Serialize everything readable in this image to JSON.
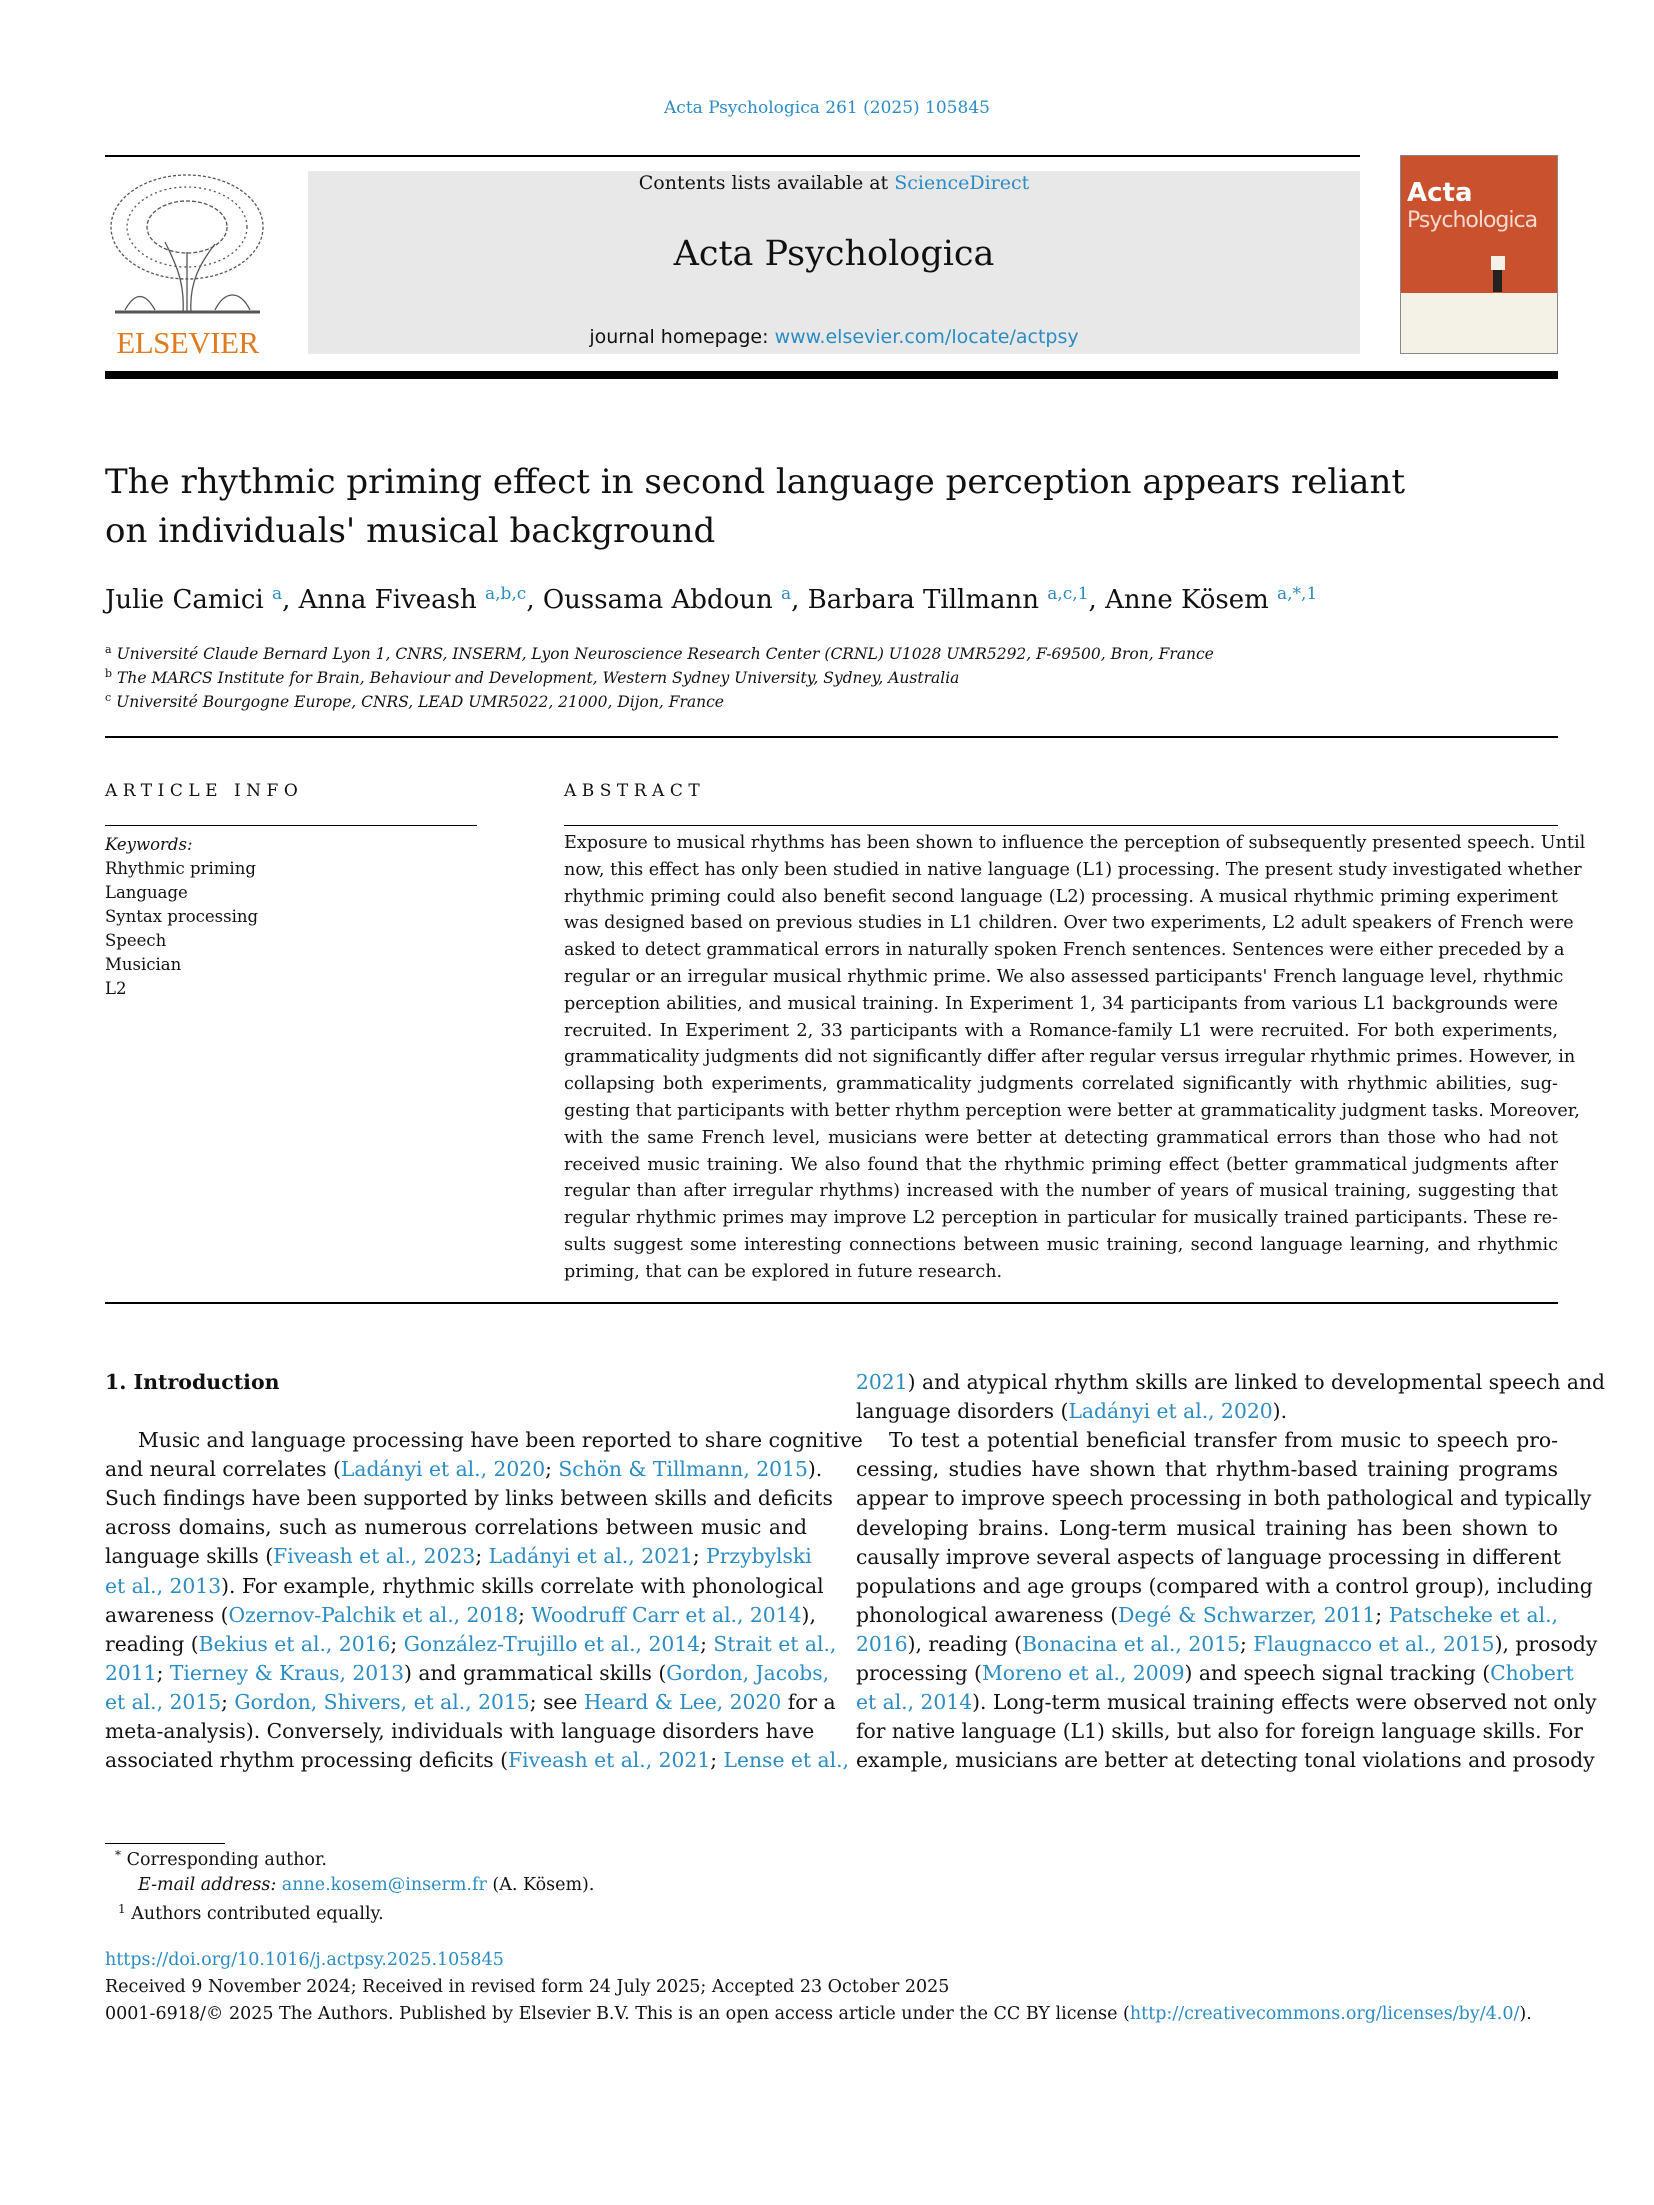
{
  "header": {
    "journal_ref": "Acta Psychologica 261 (2025) 105845",
    "contents_prefix": "Contents lists available at ",
    "contents_link": "ScienceDirect",
    "journal_title": "Acta Psychologica",
    "homepage_prefix": "journal homepage: ",
    "homepage_link": "www.elsevier.com/locate/actpsy",
    "publisher_logo": "ELSEVIER",
    "cover_title_1": "Acta",
    "cover_title_2": "Psychologica",
    "colors": {
      "link": "#2b8cc4",
      "elsevier_orange": "#e07b1f",
      "cover": "#c9512d",
      "header_box": "#e8e8e8"
    }
  },
  "article": {
    "title_line_1": "The rhythmic priming effect in second language perception appears reliant",
    "title_line_2": "on individuals' musical background",
    "authors": [
      {
        "name": "Julie Camici",
        "sup": "a",
        "sep": ", "
      },
      {
        "name": "Anna Fiveash",
        "sup": "a,b,c",
        "sep": ", "
      },
      {
        "name": "Oussama Abdoun",
        "sup": "a",
        "sep": ", "
      },
      {
        "name": "Barbara Tillmann",
        "sup": "a,c,1",
        "sep": ", "
      },
      {
        "name": "Anne Kösem",
        "sup": "a,*,1",
        "sep": ""
      }
    ],
    "affiliations": [
      {
        "mark": "a",
        "text": "Université Claude Bernard Lyon 1, CNRS, INSERM, Lyon Neuroscience Research Center (CRNL) U1028 UMR5292, F-69500, Bron, France"
      },
      {
        "mark": "b",
        "text": "The MARCS Institute for Brain, Behaviour and Development, Western Sydney University, Sydney, Australia"
      },
      {
        "mark": "c",
        "text": "Université Bourgogne Europe, CNRS, LEAD UMR5022, 21000, Dijon, France"
      }
    ]
  },
  "article_info": {
    "heading": "ARTICLE INFO",
    "keywords_label": "Keywords:",
    "keywords": [
      "Rhythmic priming",
      "Language",
      "Syntax processing",
      "Speech",
      "Musician",
      "L2"
    ]
  },
  "abstract": {
    "heading": "ABSTRACT",
    "lines": [
      "Exposure to musical rhythms has been shown to influence the perception of subsequently presented speech. Until",
      "now, this effect has only been studied in native language (L1) processing. The present study investigated whether",
      "rhythmic priming could also benefit second language (L2) processing. A musical rhythmic priming experiment",
      "was designed based on previous studies in L1 children. Over two experiments, L2 adult speakers of French were",
      "asked to detect grammatical errors in naturally spoken French sentences. Sentences were either preceded by a",
      "regular or an irregular musical rhythmic prime. We also assessed participants' French language level, rhythmic",
      "perception abilities, and musical training. In Experiment 1, 34 participants from various L1 backgrounds were",
      "recruited. In Experiment 2, 33 participants with a Romance-family L1 were recruited. For both experiments,",
      "grammaticality judgments did not significantly differ after regular versus irregular rhythmic primes. However, in",
      "collapsing both experiments, grammaticality judgments correlated significantly with rhythmic abilities, sug-",
      "gesting that participants with better rhythm perception were better at grammaticality judgment tasks. Moreover,",
      "with the same French level, musicians were better at detecting grammatical errors than those who had not",
      "received music training. We also found that the rhythmic priming effect (better grammatical judgments after",
      "regular than after irregular rhythms) increased with the number of years of musical training, suggesting that",
      "regular rhythmic primes may improve L2 perception in particular for musically trained participants. These re-",
      "sults suggest some interesting connections between music training, second language learning, and rhythmic",
      "priming, that can be explored in future research."
    ]
  },
  "introduction": {
    "heading": "1.  Introduction",
    "left_lines": [
      {
        "indent": true,
        "segs": [
          "Music and language processing have been reported to share cognitive"
        ]
      },
      {
        "segs": [
          "and neural correlates (",
          {
            "l": "Ladányi et al., 2020"
          },
          "; ",
          {
            "l": "Schön & Tillmann, 2015"
          },
          ")."
        ]
      },
      {
        "segs": [
          "Such findings have been supported by links between skills and deficits"
        ]
      },
      {
        "segs": [
          "across domains, such as numerous correlations between music and"
        ]
      },
      {
        "segs": [
          "language skills (",
          {
            "l": "Fiveash et al., 2023"
          },
          "; ",
          {
            "l": "Ladányi et al., 2021"
          },
          "; ",
          {
            "l": "Przybylski"
          }
        ]
      },
      {
        "segs": [
          {
            "l": "et al., 2013"
          },
          "). For example, rhythmic skills correlate with phonological"
        ]
      },
      {
        "segs": [
          "awareness (",
          {
            "l": "Ozernov-Palchik et al., 2018"
          },
          "; ",
          {
            "l": "Woodruff Carr et al., 2014"
          },
          "),"
        ]
      },
      {
        "segs": [
          "reading (",
          {
            "l": "Bekius et al., 2016"
          },
          "; ",
          {
            "l": "González-Trujillo et al., 2014"
          },
          "; ",
          {
            "l": "Strait et al.,"
          }
        ]
      },
      {
        "segs": [
          {
            "l": "2011"
          },
          "; ",
          {
            "l": "Tierney & Kraus, 2013"
          },
          ") and grammatical skills (",
          {
            "l": "Gordon, Jacobs,"
          }
        ]
      },
      {
        "segs": [
          {
            "l": "et al., 2015"
          },
          "; ",
          {
            "l": "Gordon, Shivers, et al., 2015"
          },
          "; see ",
          {
            "l": "Heard & Lee, 2020"
          },
          " for a"
        ]
      },
      {
        "segs": [
          "meta-analysis). Conversely, individuals with language disorders have"
        ]
      },
      {
        "segs": [
          "associated rhythm processing deficits (",
          {
            "l": "Fiveash et al., 2021"
          },
          "; ",
          {
            "l": "Lense et al.,"
          }
        ]
      }
    ],
    "right_lines": [
      {
        "segs": [
          {
            "l": "2021"
          },
          ") and atypical rhythm skills are linked to developmental speech and"
        ]
      },
      {
        "last": true,
        "segs": [
          "language disorders (",
          {
            "l": "Ladányi et al., 2020"
          },
          ")."
        ]
      },
      {
        "indent": true,
        "segs": [
          "To test a potential beneficial transfer from music to speech pro-"
        ]
      },
      {
        "segs": [
          "cessing, studies have shown that rhythm-based training programs"
        ]
      },
      {
        "segs": [
          "appear to improve speech processing in both pathological and typically"
        ]
      },
      {
        "segs": [
          "developing brains. Long-term musical training has been shown to"
        ]
      },
      {
        "segs": [
          "causally improve several aspects of language processing in different"
        ]
      },
      {
        "segs": [
          "populations and age groups (compared with a control group), including"
        ]
      },
      {
        "segs": [
          "phonological awareness (",
          {
            "l": "Degé & Schwarzer, 2011"
          },
          "; ",
          {
            "l": "Patscheke et al.,"
          }
        ]
      },
      {
        "segs": [
          {
            "l": "2016"
          },
          "), reading (",
          {
            "l": "Bonacina et al., 2015"
          },
          "; ",
          {
            "l": "Flaugnacco et al., 2015"
          },
          "), prosody"
        ]
      },
      {
        "segs": [
          "processing (",
          {
            "l": "Moreno et al., 2009"
          },
          ") and speech signal tracking (",
          {
            "l": "Chobert"
          }
        ]
      },
      {
        "segs": [
          {
            "l": "et al., 2014"
          },
          "). Long-term musical training effects were observed not only"
        ]
      },
      {
        "segs": [
          "for native language (L1) skills, but also for foreign language skills. For"
        ]
      },
      {
        "segs": [
          "example, musicians are better at detecting tonal violations and prosody"
        ]
      }
    ]
  },
  "footnotes": {
    "corresponding": "Corresponding author.",
    "corresponding_mark": "*",
    "email_label": "E-mail address: ",
    "email": "anne.kosem@inserm.fr",
    "email_suffix": " (A. Kösem).",
    "equal_mark": "1",
    "equal": "Authors contributed equally."
  },
  "publication": {
    "doi": "https://doi.org/10.1016/j.actpsy.2025.105845",
    "received": "Received 9 November 2024; Received in revised form 24 July 2025; Accepted 23 October 2025",
    "copyright_prefix": "0001-6918/© 2025 The Authors. Published by Elsevier B.V. This is an open access article under the CC BY license (",
    "license_link": "http://creativecommons.org/licenses/by/4.0/",
    "copyright_suffix": ")."
  }
}
